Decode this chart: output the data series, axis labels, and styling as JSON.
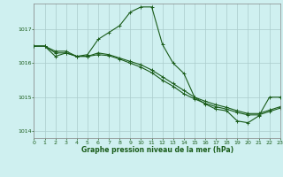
{
  "title": "Graphe pression niveau de la mer (hPa)",
  "background_color": "#cff0f0",
  "grid_color": "#aacccc",
  "line_color": "#1a5c1a",
  "xlim": [
    0,
    23
  ],
  "ylim": [
    1013.8,
    1017.75
  ],
  "yticks": [
    1014,
    1015,
    1016,
    1017
  ],
  "xticks": [
    0,
    1,
    2,
    3,
    4,
    5,
    6,
    7,
    8,
    9,
    10,
    11,
    12,
    13,
    14,
    15,
    16,
    17,
    18,
    19,
    20,
    21,
    22,
    23
  ],
  "series1_x": [
    0,
    1,
    2,
    3,
    4,
    5,
    6,
    7,
    8,
    9,
    10,
    11,
    12,
    13,
    14,
    15,
    16,
    17,
    18,
    19,
    20,
    21,
    22,
    23
  ],
  "series1_y": [
    1016.5,
    1016.5,
    1016.2,
    1016.3,
    1016.2,
    1016.25,
    1016.7,
    1016.9,
    1017.1,
    1017.5,
    1017.65,
    1017.65,
    1016.55,
    1016.0,
    1015.7,
    1015.0,
    1014.8,
    1014.65,
    1014.6,
    1014.3,
    1014.25,
    1014.45,
    1015.0,
    1015.0
  ],
  "series2_x": [
    0,
    1,
    2,
    3,
    4,
    5,
    6,
    7,
    8,
    9,
    10,
    11,
    12,
    13,
    14,
    15,
    16,
    17,
    18,
    19,
    20,
    21,
    22,
    23
  ],
  "series2_y": [
    1016.5,
    1016.5,
    1016.35,
    1016.35,
    1016.2,
    1016.2,
    1016.3,
    1016.25,
    1016.15,
    1016.05,
    1015.95,
    1015.8,
    1015.6,
    1015.4,
    1015.2,
    1015.0,
    1014.88,
    1014.78,
    1014.7,
    1014.6,
    1014.52,
    1014.52,
    1014.62,
    1014.72
  ],
  "series3_x": [
    0,
    1,
    2,
    3,
    4,
    5,
    6,
    7,
    8,
    9,
    10,
    11,
    12,
    13,
    14,
    15,
    16,
    17,
    18,
    19,
    20,
    21,
    22,
    23
  ],
  "series3_y": [
    1016.5,
    1016.5,
    1016.3,
    1016.3,
    1016.2,
    1016.2,
    1016.25,
    1016.22,
    1016.12,
    1016.0,
    1015.88,
    1015.72,
    1015.5,
    1015.32,
    1015.1,
    1014.95,
    1014.82,
    1014.72,
    1014.65,
    1014.55,
    1014.48,
    1014.48,
    1014.58,
    1014.68
  ]
}
